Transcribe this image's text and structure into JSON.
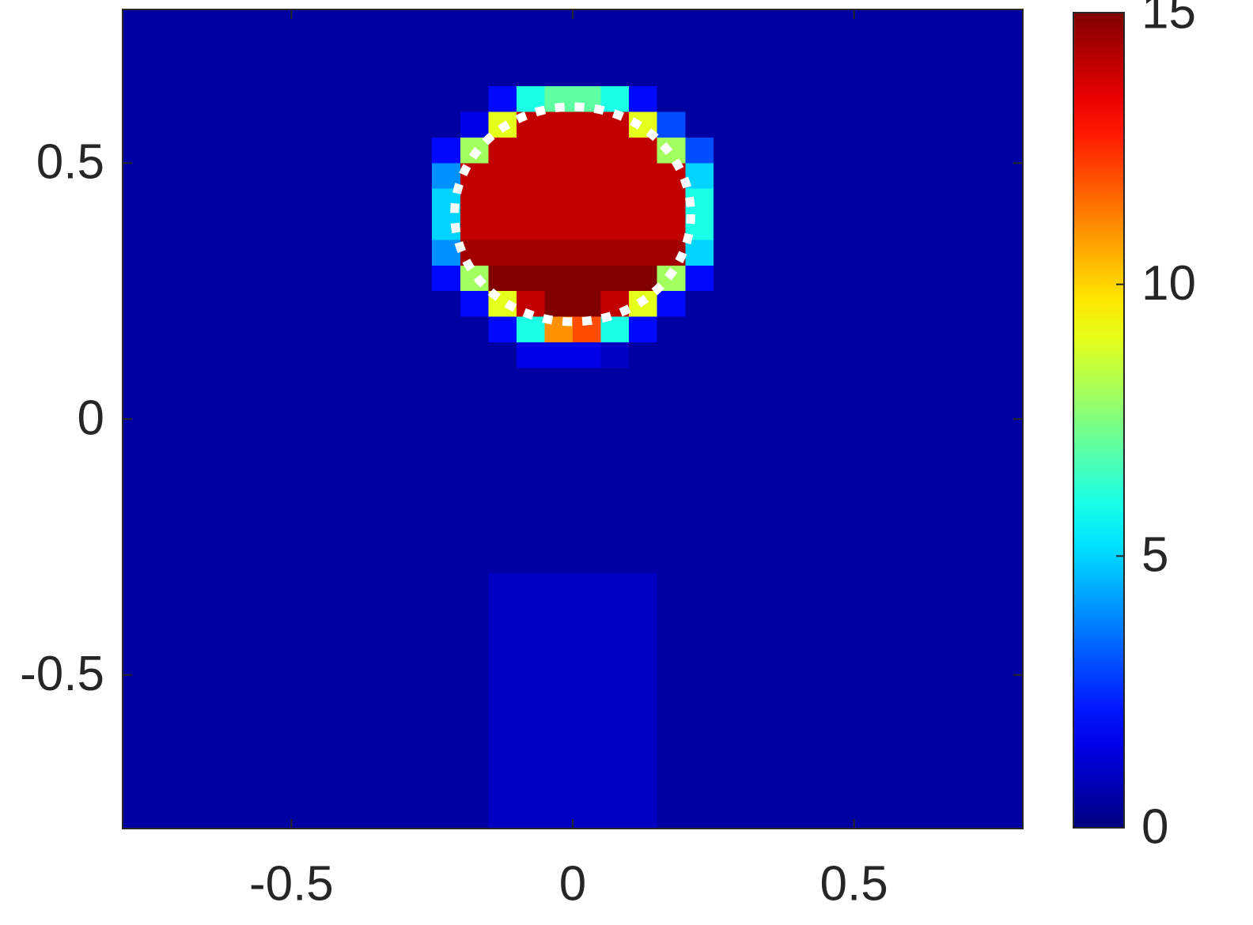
{
  "chart_data": {
    "type": "heatmap",
    "colormap": "jet",
    "xlim": [
      -0.8,
      0.8
    ],
    "ylim": [
      -0.8,
      0.8
    ],
    "xticks": [
      -0.5,
      0,
      0.5
    ],
    "yticks": [
      -0.5,
      0,
      0.5
    ],
    "clim": [
      0,
      15
    ],
    "cticks": [
      0,
      5,
      10,
      15
    ],
    "circle": {
      "x": 0,
      "y": 0.4,
      "r": 0.21,
      "color": "#ffffff"
    },
    "z": [
      [
        0.5,
        0.5,
        0.5,
        0.5,
        0.5,
        0.5,
        0.5,
        0.5,
        0.5,
        0.5,
        0.5,
        0.5,
        0.5,
        0.5,
        0.5,
        0.5,
        0.5,
        0.5,
        0.5,
        0.5,
        0.5,
        0.5,
        0.5,
        0.5,
        0.5,
        0.5,
        0.5,
        0.5,
        0.5,
        0.5,
        0.5,
        0.5
      ],
      [
        0.5,
        0.5,
        0.5,
        0.5,
        0.5,
        0.5,
        0.5,
        0.5,
        0.5,
        0.5,
        0.5,
        0.5,
        0.5,
        0.5,
        0.5,
        0.5,
        0.5,
        0.5,
        0.5,
        0.5,
        0.5,
        0.5,
        0.5,
        0.5,
        0.5,
        0.5,
        0.5,
        0.5,
        0.5,
        0.5,
        0.5,
        0.5
      ],
      [
        0.5,
        0.5,
        0.5,
        0.5,
        0.5,
        0.5,
        0.5,
        0.5,
        0.5,
        0.5,
        0.5,
        0.5,
        0.5,
        0.5,
        0.5,
        0.5,
        0.5,
        0.5,
        0.5,
        0.5,
        0.5,
        0.5,
        0.5,
        0.5,
        0.5,
        0.5,
        0.5,
        0.5,
        0.5,
        0.5,
        0.5,
        0.5
      ],
      [
        0.5,
        0.5,
        0.5,
        0.5,
        0.5,
        0.5,
        0.5,
        0.5,
        0.5,
        0.5,
        0.5,
        0.5,
        0.5,
        2,
        6,
        7,
        7,
        6,
        2,
        0.5,
        0.5,
        0.5,
        0.5,
        0.5,
        0.5,
        0.5,
        0.5,
        0.5,
        0.5,
        0.5,
        0.5,
        0.5
      ],
      [
        0.5,
        0.5,
        0.5,
        0.5,
        0.5,
        0.5,
        0.5,
        0.5,
        0.5,
        0.5,
        0.5,
        0.5,
        1.5,
        9,
        14,
        14,
        14,
        14,
        9,
        3,
        0.5,
        0.5,
        0.5,
        0.5,
        0.5,
        0.5,
        0.5,
        0.5,
        0.5,
        0.5,
        0.5,
        0.5
      ],
      [
        0.5,
        0.5,
        0.5,
        0.5,
        0.5,
        0.5,
        0.5,
        0.5,
        0.5,
        0.5,
        0.5,
        2,
        8,
        14,
        14,
        14,
        14,
        14,
        14,
        8,
        3,
        0.5,
        0.5,
        0.5,
        0.5,
        0.5,
        0.5,
        0.5,
        0.5,
        0.5,
        0.5,
        0.5
      ],
      [
        0.5,
        0.5,
        0.5,
        0.5,
        0.5,
        0.5,
        0.5,
        0.5,
        0.5,
        0.5,
        0.5,
        4,
        14,
        14,
        14,
        14,
        14,
        14,
        14,
        14,
        5,
        0.5,
        0.5,
        0.5,
        0.5,
        0.5,
        0.5,
        0.5,
        0.5,
        0.5,
        0.5,
        0.5
      ],
      [
        0.5,
        0.5,
        0.5,
        0.5,
        0.5,
        0.5,
        0.5,
        0.5,
        0.5,
        0.5,
        0.5,
        5,
        14,
        14,
        14,
        14,
        14,
        14,
        14,
        14,
        6,
        0.5,
        0.5,
        0.5,
        0.5,
        0.5,
        0.5,
        0.5,
        0.5,
        0.5,
        0.5,
        0.5
      ],
      [
        0.5,
        0.5,
        0.5,
        0.5,
        0.5,
        0.5,
        0.5,
        0.5,
        0.5,
        0.5,
        0.5,
        5,
        14,
        14,
        14,
        14,
        14,
        14,
        14,
        14,
        6,
        0.5,
        0.5,
        0.5,
        0.5,
        0.5,
        0.5,
        0.5,
        0.5,
        0.5,
        0.5,
        0.5
      ],
      [
        0.5,
        0.5,
        0.5,
        0.5,
        0.5,
        0.5,
        0.5,
        0.5,
        0.5,
        0.5,
        0.5,
        4,
        14.5,
        14.5,
        14.5,
        14.5,
        14.5,
        14.5,
        14.5,
        14.5,
        5,
        0.5,
        0.5,
        0.5,
        0.5,
        0.5,
        0.5,
        0.5,
        0.5,
        0.5,
        0.5,
        0.5
      ],
      [
        0.5,
        0.5,
        0.5,
        0.5,
        0.5,
        0.5,
        0.5,
        0.5,
        0.5,
        0.5,
        0.5,
        2,
        8,
        15,
        15,
        15,
        15,
        15,
        15,
        8,
        2,
        0.5,
        0.5,
        0.5,
        0.5,
        0.5,
        0.5,
        0.5,
        0.5,
        0.5,
        0.5,
        0.5
      ],
      [
        0.5,
        0.5,
        0.5,
        0.5,
        0.5,
        0.5,
        0.5,
        0.5,
        0.5,
        0.5,
        0.5,
        0.5,
        2,
        9,
        14,
        15,
        15,
        14,
        9,
        2,
        0.5,
        0.5,
        0.5,
        0.5,
        0.5,
        0.5,
        0.5,
        0.5,
        0.5,
        0.5,
        0.5,
        0.5
      ],
      [
        0.5,
        0.5,
        0.5,
        0.5,
        0.5,
        0.5,
        0.5,
        0.5,
        0.5,
        0.5,
        0.5,
        0.5,
        0.5,
        2,
        6,
        11,
        12,
        6,
        2,
        0.5,
        0.5,
        0.5,
        0.5,
        0.5,
        0.5,
        0.5,
        0.5,
        0.5,
        0.5,
        0.5,
        0.5,
        0.5
      ],
      [
        0.5,
        0.5,
        0.5,
        0.5,
        0.5,
        0.5,
        0.5,
        0.5,
        0.5,
        0.5,
        0.5,
        0.5,
        0.5,
        0.5,
        1.5,
        1.5,
        1.5,
        1,
        0.5,
        0.5,
        0.5,
        0.5,
        0.5,
        0.5,
        0.5,
        0.5,
        0.5,
        0.5,
        0.5,
        0.5,
        0.5,
        0.5
      ],
      [
        0.5,
        0.5,
        0.5,
        0.5,
        0.5,
        0.5,
        0.5,
        0.5,
        0.5,
        0.5,
        0.5,
        0.5,
        0.5,
        0.5,
        0.5,
        0.5,
        0.5,
        0.5,
        0.5,
        0.5,
        0.5,
        0.5,
        0.5,
        0.5,
        0.5,
        0.5,
        0.5,
        0.5,
        0.5,
        0.5,
        0.5,
        0.5
      ],
      [
        0.5,
        0.5,
        0.5,
        0.5,
        0.5,
        0.5,
        0.5,
        0.5,
        0.5,
        0.5,
        0.5,
        0.5,
        0.5,
        0.5,
        0.5,
        0.5,
        0.5,
        0.5,
        0.5,
        0.5,
        0.5,
        0.5,
        0.5,
        0.5,
        0.5,
        0.5,
        0.5,
        0.5,
        0.5,
        0.5,
        0.5,
        0.5
      ],
      [
        0.5,
        0.5,
        0.5,
        0.5,
        0.5,
        0.5,
        0.5,
        0.5,
        0.5,
        0.5,
        0.5,
        0.5,
        0.5,
        0.5,
        0.5,
        0.5,
        0.5,
        0.5,
        0.5,
        0.5,
        0.5,
        0.5,
        0.5,
        0.5,
        0.5,
        0.5,
        0.5,
        0.5,
        0.5,
        0.5,
        0.5,
        0.5
      ],
      [
        0.5,
        0.5,
        0.5,
        0.5,
        0.5,
        0.5,
        0.5,
        0.5,
        0.5,
        0.5,
        0.5,
        0.5,
        0.5,
        0.5,
        0.5,
        0.5,
        0.5,
        0.5,
        0.5,
        0.5,
        0.5,
        0.5,
        0.5,
        0.5,
        0.5,
        0.5,
        0.5,
        0.5,
        0.5,
        0.5,
        0.5,
        0.5
      ],
      [
        0.5,
        0.5,
        0.5,
        0.5,
        0.5,
        0.5,
        0.5,
        0.5,
        0.5,
        0.5,
        0.5,
        0.5,
        0.5,
        0.5,
        0.5,
        0.5,
        0.5,
        0.5,
        0.5,
        0.5,
        0.5,
        0.5,
        0.5,
        0.5,
        0.5,
        0.5,
        0.5,
        0.5,
        0.5,
        0.5,
        0.5,
        0.5
      ],
      [
        0.5,
        0.5,
        0.5,
        0.5,
        0.5,
        0.5,
        0.5,
        0.5,
        0.5,
        0.5,
        0.5,
        0.5,
        0.5,
        0.5,
        0.5,
        0.5,
        0.5,
        0.5,
        0.5,
        0.5,
        0.5,
        0.5,
        0.5,
        0.5,
        0.5,
        0.5,
        0.5,
        0.5,
        0.5,
        0.5,
        0.5,
        0.5
      ],
      [
        0.5,
        0.5,
        0.5,
        0.5,
        0.5,
        0.5,
        0.5,
        0.5,
        0.5,
        0.5,
        0.5,
        0.5,
        0.5,
        0.5,
        0.5,
        0.5,
        0.5,
        0.5,
        0.5,
        0.5,
        0.5,
        0.5,
        0.5,
        0.5,
        0.5,
        0.5,
        0.5,
        0.5,
        0.5,
        0.5,
        0.5,
        0.5
      ],
      [
        0.5,
        0.5,
        0.5,
        0.5,
        0.5,
        0.5,
        0.5,
        0.5,
        0.5,
        0.5,
        0.5,
        0.5,
        0.5,
        0.5,
        0.5,
        0.5,
        0.5,
        0.5,
        0.5,
        0.5,
        0.5,
        0.5,
        0.5,
        0.5,
        0.5,
        0.5,
        0.5,
        0.5,
        0.5,
        0.5,
        0.5,
        0.5
      ],
      [
        0.5,
        0.5,
        0.5,
        0.5,
        0.5,
        0.5,
        0.5,
        0.5,
        0.5,
        0.5,
        0.5,
        0.5,
        0.5,
        1,
        1,
        1,
        1,
        1,
        1,
        0.5,
        0.5,
        0.5,
        0.5,
        0.5,
        0.5,
        0.5,
        0.5,
        0.5,
        0.5,
        0.5,
        0.5,
        0.5
      ],
      [
        0.5,
        0.5,
        0.5,
        0.5,
        0.5,
        0.5,
        0.5,
        0.5,
        0.5,
        0.5,
        0.5,
        0.5,
        0.5,
        1,
        1,
        1,
        1,
        1,
        1,
        0.5,
        0.5,
        0.5,
        0.5,
        0.5,
        0.5,
        0.5,
        0.5,
        0.5,
        0.5,
        0.5,
        0.5,
        0.5
      ],
      [
        0.5,
        0.5,
        0.5,
        0.5,
        0.5,
        0.5,
        0.5,
        0.5,
        0.5,
        0.5,
        0.5,
        0.5,
        0.5,
        1,
        1,
        1,
        1,
        1,
        1,
        0.5,
        0.5,
        0.5,
        0.5,
        0.5,
        0.5,
        0.5,
        0.5,
        0.5,
        0.5,
        0.5,
        0.5,
        0.5
      ],
      [
        0.5,
        0.5,
        0.5,
        0.5,
        0.5,
        0.5,
        0.5,
        0.5,
        0.5,
        0.5,
        0.5,
        0.5,
        0.5,
        1,
        1,
        1,
        1,
        1,
        1,
        0.5,
        0.5,
        0.5,
        0.5,
        0.5,
        0.5,
        0.5,
        0.5,
        0.5,
        0.5,
        0.5,
        0.5,
        0.5
      ],
      [
        0.5,
        0.5,
        0.5,
        0.5,
        0.5,
        0.5,
        0.5,
        0.5,
        0.5,
        0.5,
        0.5,
        0.5,
        0.5,
        1,
        1,
        1,
        1,
        1,
        1,
        0.5,
        0.5,
        0.5,
        0.5,
        0.5,
        0.5,
        0.5,
        0.5,
        0.5,
        0.5,
        0.5,
        0.5,
        0.5
      ],
      [
        0.5,
        0.5,
        0.5,
        0.5,
        0.5,
        0.5,
        0.5,
        0.5,
        0.5,
        0.5,
        0.5,
        0.5,
        0.5,
        1,
        1,
        1,
        1,
        1,
        1,
        0.5,
        0.5,
        0.5,
        0.5,
        0.5,
        0.5,
        0.5,
        0.5,
        0.5,
        0.5,
        0.5,
        0.5,
        0.5
      ],
      [
        0.5,
        0.5,
        0.5,
        0.5,
        0.5,
        0.5,
        0.5,
        0.5,
        0.5,
        0.5,
        0.5,
        0.5,
        0.5,
        1,
        1,
        1,
        1,
        1,
        1,
        0.5,
        0.5,
        0.5,
        0.5,
        0.5,
        0.5,
        0.5,
        0.5,
        0.5,
        0.5,
        0.5,
        0.5,
        0.5
      ],
      [
        0.5,
        0.5,
        0.5,
        0.5,
        0.5,
        0.5,
        0.5,
        0.5,
        0.5,
        0.5,
        0.5,
        0.5,
        0.5,
        1,
        1,
        1,
        1,
        1,
        1,
        0.5,
        0.5,
        0.5,
        0.5,
        0.5,
        0.5,
        0.5,
        0.5,
        0.5,
        0.5,
        0.5,
        0.5,
        0.5
      ],
      [
        0.5,
        0.5,
        0.5,
        0.5,
        0.5,
        0.5,
        0.5,
        0.5,
        0.5,
        0.5,
        0.5,
        0.5,
        0.5,
        1,
        1,
        1,
        1,
        1,
        1,
        0.5,
        0.5,
        0.5,
        0.5,
        0.5,
        0.5,
        0.5,
        0.5,
        0.5,
        0.5,
        0.5,
        0.5,
        0.5
      ],
      [
        0.5,
        0.5,
        0.5,
        0.5,
        0.5,
        0.5,
        0.5,
        0.5,
        0.5,
        0.5,
        0.5,
        0.5,
        0.5,
        1,
        1,
        1,
        1,
        1,
        1,
        0.5,
        0.5,
        0.5,
        0.5,
        0.5,
        0.5,
        0.5,
        0.5,
        0.5,
        0.5,
        0.5,
        0.5,
        0.5
      ]
    ]
  }
}
